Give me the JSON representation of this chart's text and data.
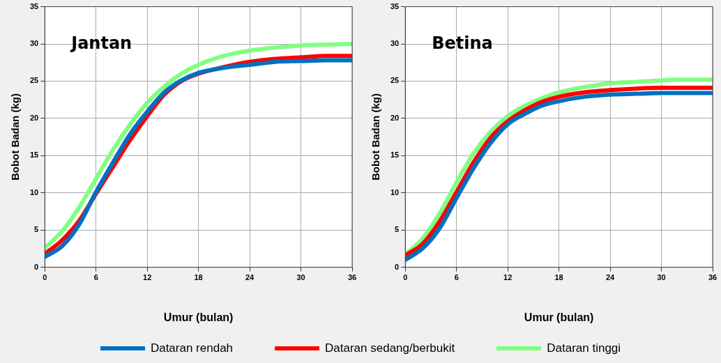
{
  "chart_data": [
    {
      "type": "line",
      "title": "Jantan",
      "xlabel": "Umur (bulan)",
      "ylabel": "Bobot Badan (kg)",
      "x": [
        0,
        2,
        4,
        6,
        8,
        10,
        12,
        14,
        16,
        18,
        21,
        24,
        27,
        30,
        33,
        36
      ],
      "xlim": [
        0,
        36
      ],
      "xticks": [
        0,
        6,
        12,
        18,
        24,
        30,
        36
      ],
      "ylim": [
        0,
        35
      ],
      "yticks": [
        0,
        5,
        10,
        15,
        20,
        25,
        30,
        35
      ],
      "grid": true,
      "legend": "bottom",
      "marker": "none",
      "line_style": "solid",
      "series": [
        {
          "name": "Dataran rendah",
          "color": "#0070c0",
          "values": [
            1.4,
            2.8,
            5.7,
            10.1,
            14.1,
            17.9,
            20.9,
            23.5,
            25.1,
            26.1,
            26.8,
            27.2,
            27.6,
            27.7,
            27.8,
            27.8
          ]
        },
        {
          "name": "Dataran sedang/berbukit",
          "color": "#ff0000",
          "values": [
            1.8,
            3.6,
            6.2,
            9.9,
            13.5,
            17.1,
            20.3,
            23.2,
            25.0,
            26.0,
            26.9,
            27.6,
            28.0,
            28.2,
            28.4,
            28.4
          ]
        },
        {
          "name": "Dataran tinggi",
          "color": "#80ff80",
          "values": [
            2.6,
            4.8,
            8.0,
            11.9,
            15.8,
            19.2,
            22.1,
            24.3,
            26.0,
            27.2,
            28.4,
            29.1,
            29.5,
            29.8,
            29.9,
            30.0
          ]
        }
      ]
    },
    {
      "type": "line",
      "title": "Betina",
      "xlabel": "Umur (bulan)",
      "ylabel": "Bobot Badan (kg)",
      "x": [
        0,
        2,
        4,
        6,
        8,
        10,
        12,
        14,
        16,
        18,
        21,
        24,
        27,
        30,
        33,
        36
      ],
      "xlim": [
        0,
        36
      ],
      "xticks": [
        0,
        6,
        12,
        18,
        24,
        30,
        36
      ],
      "ylim": [
        0,
        35
      ],
      "yticks": [
        0,
        5,
        10,
        15,
        20,
        25,
        30,
        35
      ],
      "grid": true,
      "marker": "none",
      "line_style": "solid",
      "series": [
        {
          "color": "#0070c0",
          "values": [
            1.0,
            2.5,
            5.2,
            9.3,
            13.3,
            16.7,
            19.2,
            20.6,
            21.7,
            22.3,
            22.9,
            23.2,
            23.3,
            23.4,
            23.4,
            23.4
          ]
        },
        {
          "color": "#ff0000",
          "values": [
            1.6,
            3.1,
            6.1,
            10.1,
            14.1,
            17.4,
            19.6,
            21.1,
            22.2,
            22.9,
            23.5,
            23.8,
            24.0,
            24.1,
            24.1,
            24.1
          ]
        },
        {
          "color": "#80ff80",
          "values": [
            1.7,
            3.8,
            7.2,
            11.4,
            15.3,
            18.2,
            20.3,
            21.7,
            22.7,
            23.5,
            24.2,
            24.7,
            24.9,
            25.1,
            25.2,
            25.2
          ]
        }
      ]
    }
  ]
}
